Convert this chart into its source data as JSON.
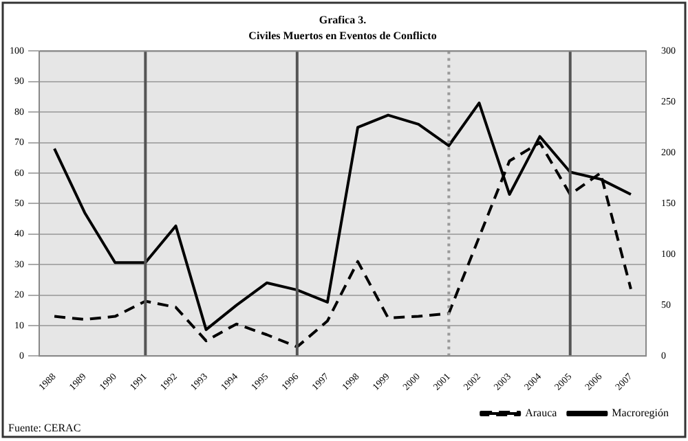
{
  "chart_data": {
    "type": "line",
    "title": "Grafica 3.",
    "subtitle": "Civiles Muertos en Eventos de Conflicto",
    "categories": [
      "1988",
      "1989",
      "1990",
      "1991",
      "1992",
      "1993",
      "1994",
      "1995",
      "1996",
      "1997",
      "1998",
      "1999",
      "2000",
      "2001",
      "2002",
      "2003",
      "2004",
      "2005",
      "2006",
      "2007"
    ],
    "series": [
      {
        "name": "Arauca",
        "color": "#000000",
        "line_style": "dashed",
        "values": [
          13,
          12,
          13,
          18,
          16,
          5,
          10.5,
          7,
          3,
          11.5,
          31,
          12.5,
          13,
          14,
          39,
          64,
          70,
          53,
          60,
          22
        ]
      },
      {
        "name": "Macroregión",
        "color": "#000000",
        "line_style": "solid",
        "axis": "y2",
        "values": [
          204,
          141,
          92,
          92,
          128,
          26,
          50,
          72,
          65,
          53,
          225,
          237,
          228,
          207,
          249,
          159,
          216,
          181,
          174,
          159
        ]
      }
    ],
    "ylim": [
      0,
      100
    ],
    "yticks": [
      0,
      10,
      20,
      30,
      40,
      50,
      60,
      70,
      80,
      90,
      100
    ],
    "y2lim": [
      0,
      300
    ],
    "y2ticks": [
      0,
      50,
      100,
      150,
      200,
      250,
      300
    ],
    "grid": "y",
    "legend": "bottom",
    "marker": "none",
    "ref_lines": [
      {
        "axis": "x",
        "value": "1991",
        "color": "#555555",
        "line_style": "solid"
      },
      {
        "axis": "x",
        "value": "1996",
        "color": "#555555",
        "line_style": "solid"
      },
      {
        "axis": "x",
        "value": "2001",
        "color": "#999999",
        "line_style": "dotted"
      },
      {
        "axis": "x",
        "value": "2005",
        "color": "#555555",
        "line_style": "solid"
      }
    ],
    "annotations": [
      "Fuente: CERAC"
    ]
  }
}
